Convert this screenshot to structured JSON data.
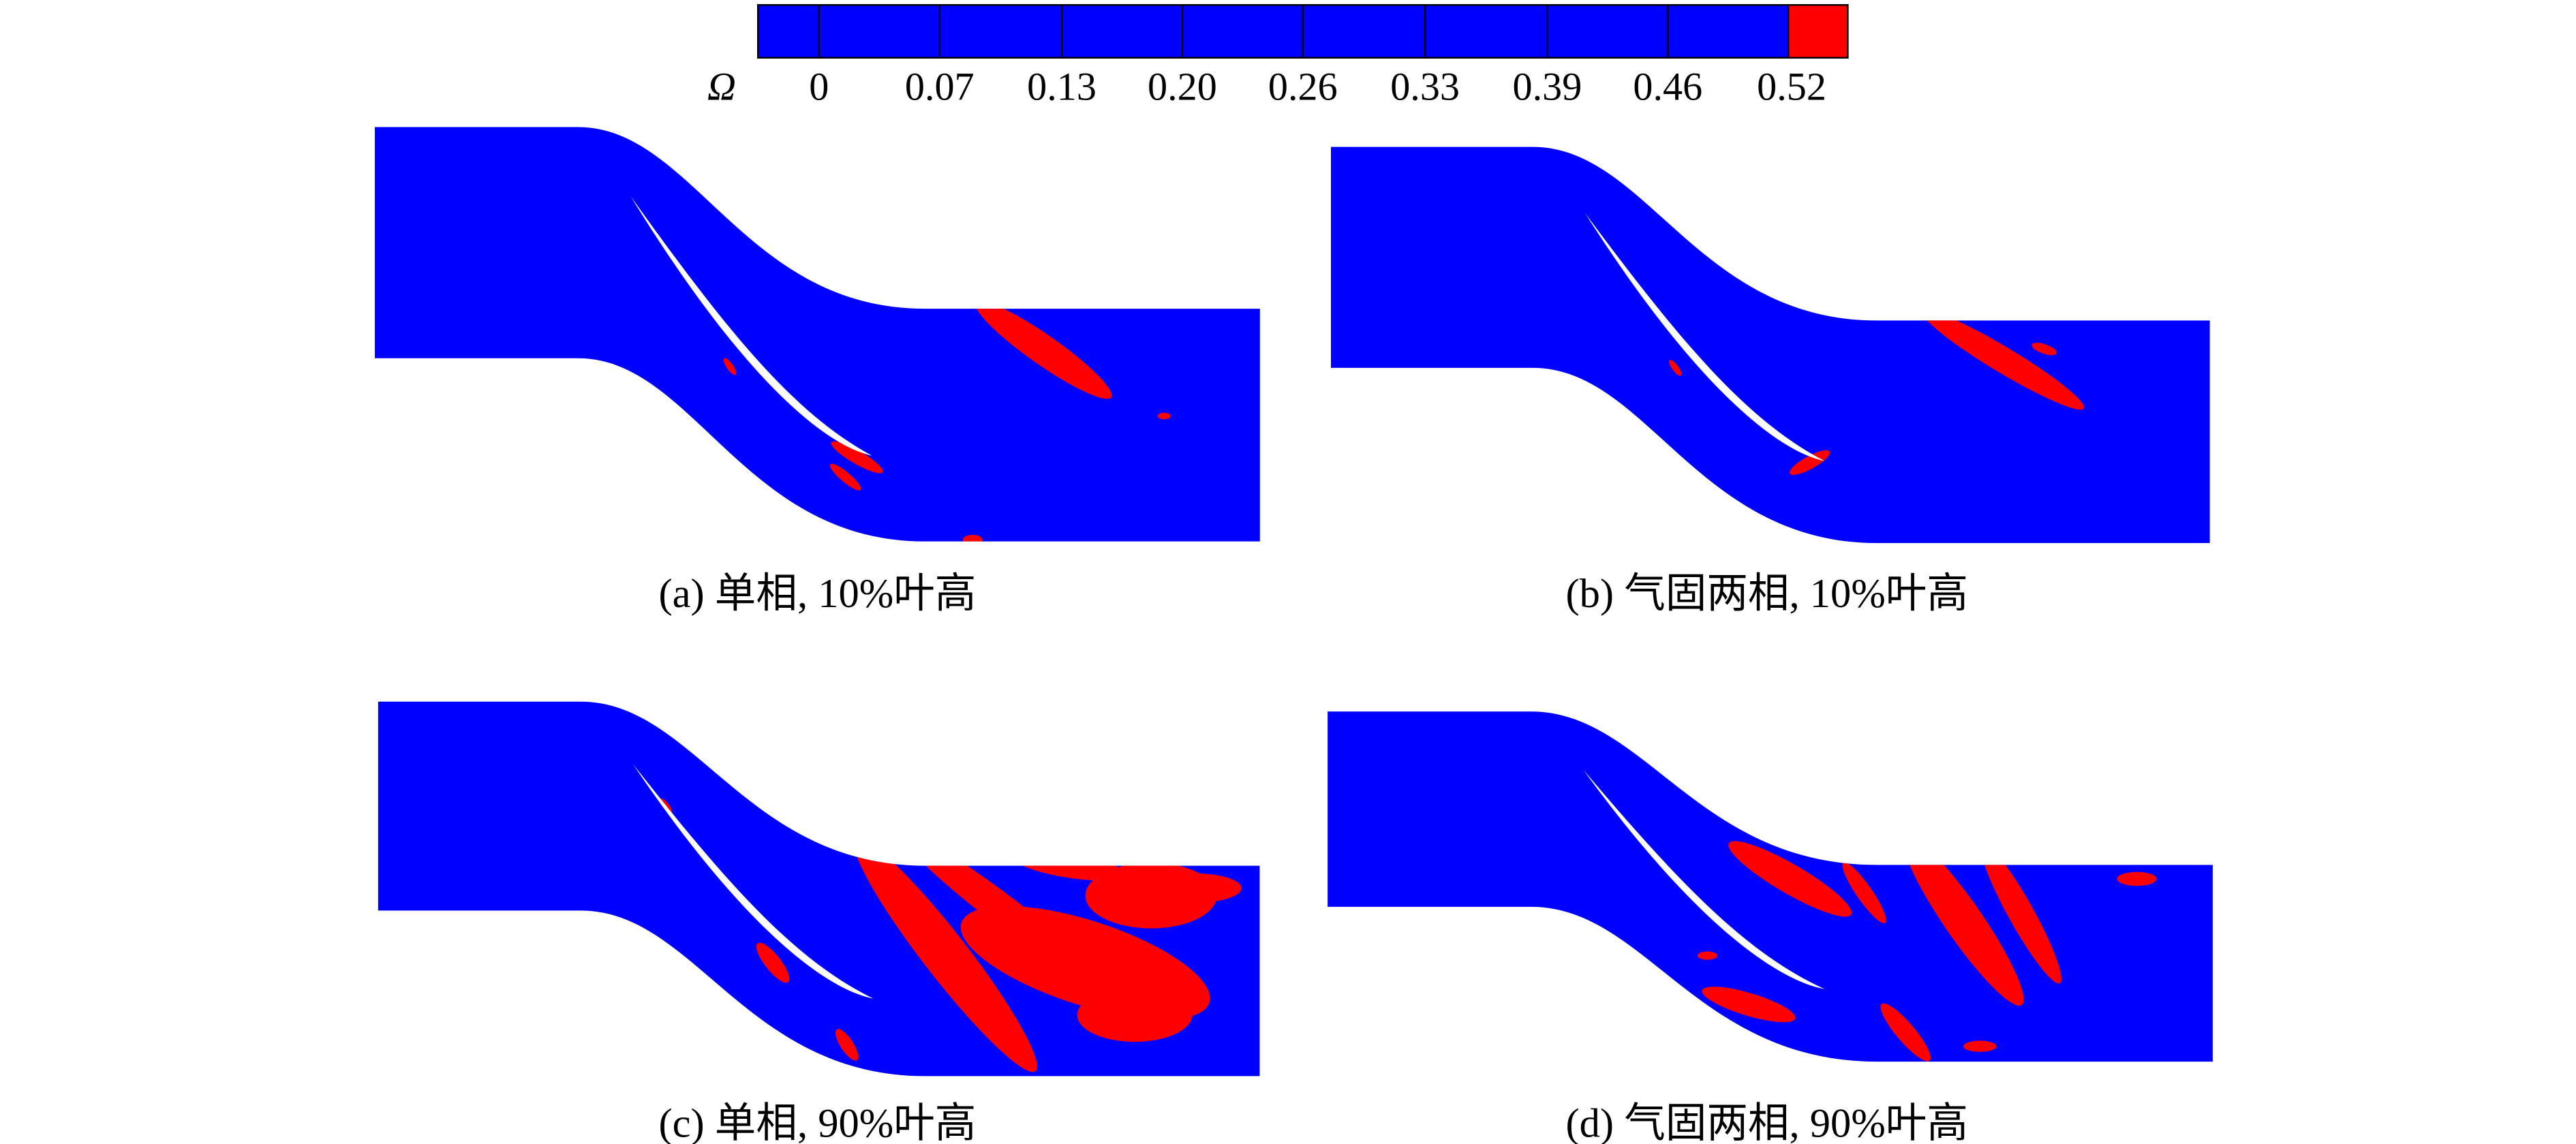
{
  "colorbar": {
    "symbol": "Ω",
    "ticks": [
      "0",
      "0.07",
      "0.13",
      "0.20",
      "0.26",
      "0.33",
      "0.39",
      "0.46",
      "0.52"
    ]
  },
  "panels": [
    {
      "caption": "(a) 单相, 10%叶高"
    },
    {
      "caption": "(b) 气固两相, 10%叶高"
    },
    {
      "caption": "(c) 单相, 90%叶高"
    },
    {
      "caption": "(d) 气固两相, 90%叶高"
    }
  ]
}
